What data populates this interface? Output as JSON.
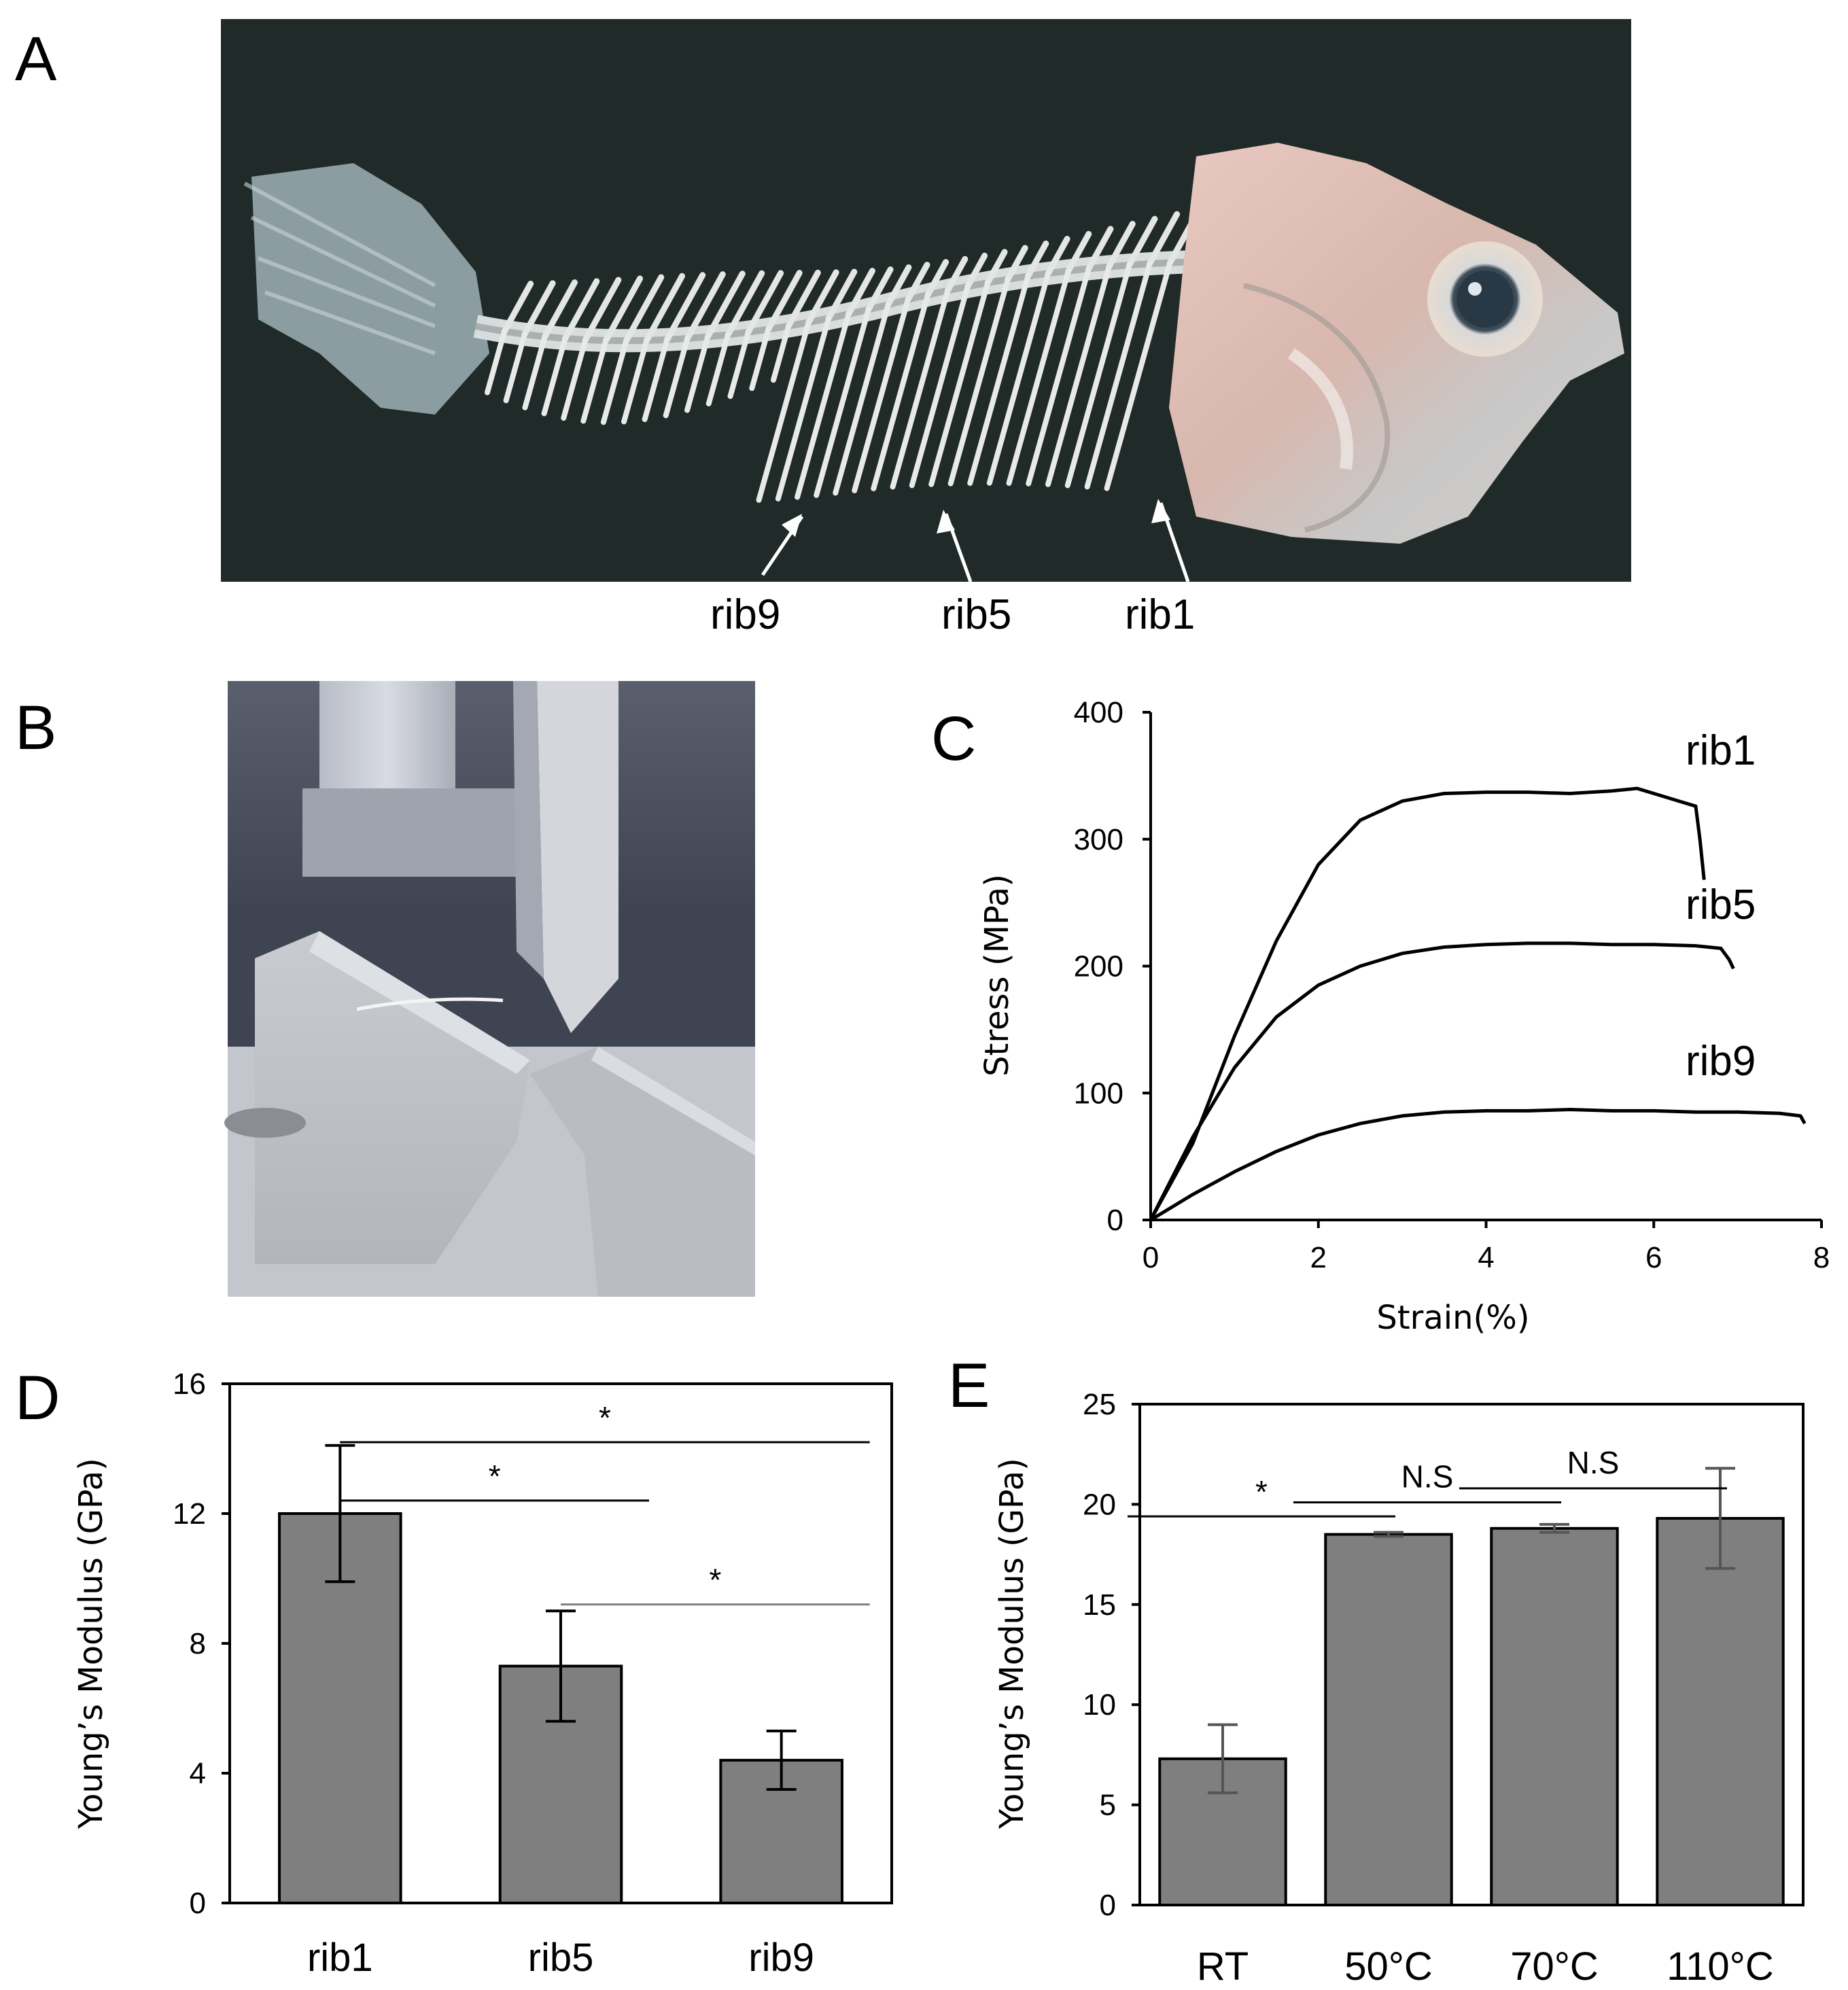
{
  "panels": {
    "a": "A",
    "b": "B",
    "c": "C",
    "d": "D",
    "e": "E"
  },
  "photo_a": {
    "rib_labels": [
      "rib9",
      "rib5",
      "rib1"
    ]
  },
  "chart_data": [
    {
      "type": "line",
      "panel": "C",
      "xlabel": "Strain(%)",
      "ylabel": "Stress (MPa)",
      "xlim": [
        0,
        8
      ],
      "ylim": [
        0,
        400
      ],
      "xticks": [
        0,
        2,
        4,
        6,
        8
      ],
      "yticks": [
        0,
        100,
        200,
        300,
        400
      ],
      "grid": false,
      "series": [
        {
          "name": "rib1",
          "color": "#000000",
          "x": [
            0,
            0.5,
            1.0,
            1.5,
            2.0,
            2.5,
            3.0,
            3.5,
            4.0,
            4.5,
            5.0,
            5.5,
            5.8,
            6.0,
            6.3,
            6.5,
            6.55,
            6.6
          ],
          "y": [
            0,
            60,
            145,
            220,
            280,
            315,
            330,
            336,
            337,
            337,
            336,
            338,
            340,
            336,
            330,
            326,
            300,
            268
          ]
        },
        {
          "name": "rib5",
          "color": "#000000",
          "x": [
            0,
            0.5,
            1.0,
            1.5,
            2.0,
            2.5,
            3.0,
            3.5,
            4.0,
            4.5,
            5.0,
            5.5,
            6.0,
            6.5,
            6.8,
            6.9,
            6.95
          ],
          "y": [
            0,
            65,
            120,
            160,
            185,
            200,
            210,
            215,
            217,
            218,
            218,
            217,
            217,
            216,
            214,
            205,
            198
          ]
        },
        {
          "name": "rib9",
          "color": "#000000",
          "x": [
            0,
            0.5,
            1.0,
            1.5,
            2.0,
            2.5,
            3.0,
            3.5,
            4.0,
            4.5,
            5.0,
            5.5,
            6.0,
            6.5,
            7.0,
            7.5,
            7.75,
            7.8
          ],
          "y": [
            0,
            20,
            38,
            54,
            67,
            76,
            82,
            85,
            86,
            86,
            87,
            86,
            86,
            85,
            85,
            84,
            82,
            76
          ]
        }
      ]
    },
    {
      "type": "bar",
      "panel": "D",
      "categories": [
        "rib1",
        "rib5",
        "rib9"
      ],
      "values": [
        12.0,
        7.3,
        4.4
      ],
      "errors": [
        2.1,
        1.7,
        0.9
      ],
      "ylabel": "Young’s Modulus (GPa)",
      "ylim": [
        0,
        16
      ],
      "yticks": [
        0,
        4,
        8,
        12,
        16
      ],
      "bar_color": "#7f7f7f",
      "significance": [
        {
          "from": 0,
          "to": 2,
          "label": "*",
          "y": 14.2
        },
        {
          "from": 0,
          "to": 1,
          "label": "*",
          "y": 12.4
        },
        {
          "from": 1,
          "to": 2,
          "label": "*",
          "y": 9.2
        }
      ]
    },
    {
      "type": "bar",
      "panel": "E",
      "categories": [
        "RT",
        "50°C",
        "70°C",
        "110°C"
      ],
      "values": [
        7.3,
        18.5,
        18.8,
        19.3
      ],
      "errors": [
        1.7,
        0.1,
        0.2,
        2.5
      ],
      "ylabel": "Young’s Modulus (GPa)",
      "ylim": [
        0,
        25
      ],
      "yticks": [
        0,
        5,
        10,
        15,
        20,
        25
      ],
      "bar_color": "#7f7f7f",
      "significance": [
        {
          "from": 0,
          "to": 1,
          "label": "*",
          "y": 19.4
        },
        {
          "from": 1,
          "to": 2,
          "label": "N.S",
          "y": 20.1
        },
        {
          "from": 2,
          "to": 3,
          "label": "N.S",
          "y": 20.8
        }
      ]
    }
  ]
}
